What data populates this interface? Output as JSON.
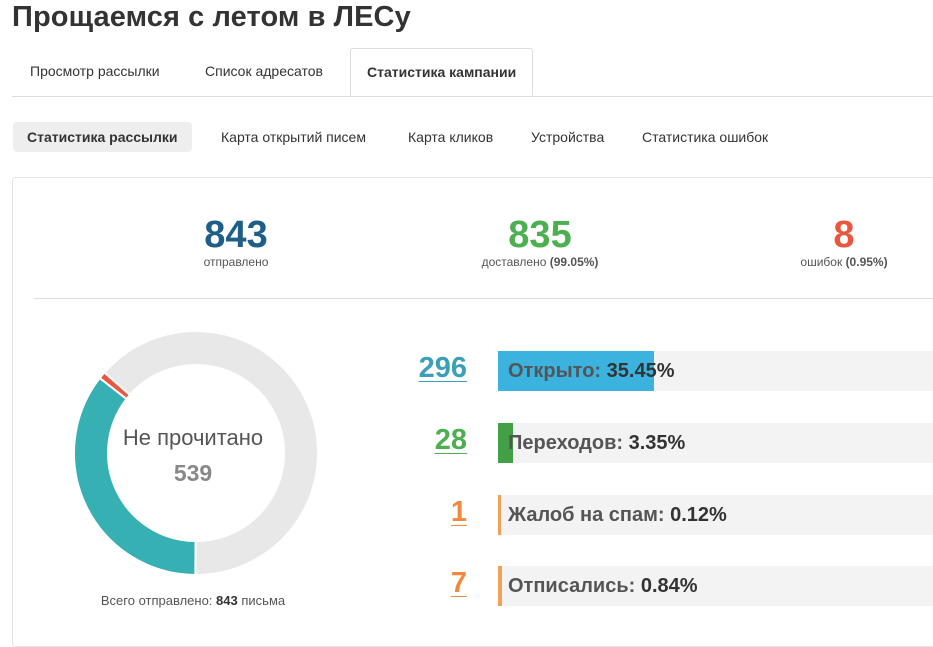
{
  "page": {
    "title": "Прощаемся с летом в ЛЕСу"
  },
  "tabs": [
    {
      "label": "Просмотр рассылки"
    },
    {
      "label": "Список адресатов"
    },
    {
      "label": "Статистика кампании"
    }
  ],
  "subtabs": [
    {
      "label": "Статистика рассылки"
    },
    {
      "label": "Карта открытий писем"
    },
    {
      "label": "Карта кликов"
    },
    {
      "label": "Устройства"
    },
    {
      "label": "Статистика ошибок"
    }
  ],
  "summary": {
    "sent": {
      "value": "843",
      "label": "отправлено",
      "color": "#1f5f87"
    },
    "delivered": {
      "value": "835",
      "label": "доставлено",
      "pct": "(99.05%)",
      "color": "#4caf50"
    },
    "errors": {
      "value": "8",
      "label": "ошибок",
      "pct": "(0.95%)",
      "color": "#e9573f"
    }
  },
  "donut": {
    "label": "Не прочитано",
    "value": "539",
    "segments": [
      {
        "name": "opened",
        "fraction": 0.3545,
        "color": "#36b0b2"
      },
      {
        "name": "errors",
        "fraction": 0.0095,
        "color": "#e9573f"
      },
      {
        "name": "unread",
        "fraction": 0.636,
        "color": "#e8e8e8"
      }
    ],
    "total_text": "Всего отправлено:",
    "total_value": "843",
    "total_unit": "письма"
  },
  "stats": [
    {
      "count": "296",
      "label": "Открыто:",
      "pct": "35.45%",
      "fraction": 0.3545,
      "color": "#3bb3de",
      "count_color": "#3a9fb8"
    },
    {
      "count": "28",
      "label": "Переходов:",
      "pct": "3.35%",
      "fraction": 0.0335,
      "color": "#43a047",
      "count_color": "#4caf50"
    },
    {
      "count": "1",
      "label": "Жалоб на спам:",
      "pct": "0.12%",
      "fraction": 0.0012,
      "color": "#f0a057",
      "count_color": "#f0883e"
    },
    {
      "count": "7",
      "label": "Отписались:",
      "pct": "0.84%",
      "fraction": 0.0084,
      "color": "#f0a057",
      "count_color": "#f0883e"
    }
  ]
}
